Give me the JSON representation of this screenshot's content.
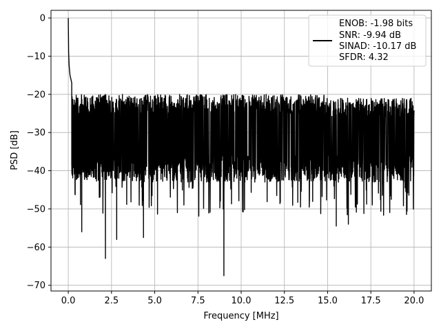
{
  "chart_data": {
    "type": "line",
    "title": "",
    "xlabel": "Frequency [MHz]",
    "ylabel": "PSD [dB]",
    "xlim": [
      -1.0,
      21.0
    ],
    "ylim": [
      -71.5,
      2.0
    ],
    "xticks": [
      0.0,
      2.5,
      5.0,
      7.5,
      10.0,
      12.5,
      15.0,
      17.5,
      20.0
    ],
    "xtick_labels": [
      "0.0",
      "2.5",
      "5.0",
      "7.5",
      "10.0",
      "12.5",
      "15.0",
      "17.5",
      "20.0"
    ],
    "yticks": [
      0,
      -10,
      -20,
      -30,
      -40,
      -50,
      -60,
      -70
    ],
    "ytick_labels": [
      "0",
      "−10",
      "−20",
      "−30",
      "−40",
      "−50",
      "−60",
      "−70"
    ],
    "grid": true,
    "legend_position": "top-right",
    "series": [
      {
        "name": "ENOB: -1.98 bits\nSNR: -9.94 dB\nSINAD: -10.17 dB\nSFDR: 4.32",
        "color": "#000000",
        "x_range": [
          0.0,
          20.0
        ],
        "peak_points": [
          {
            "x": 0.0,
            "y": 0.0
          },
          {
            "x": 0.02,
            "y": -9.0
          },
          {
            "x": 0.05,
            "y": -12.5
          },
          {
            "x": 0.1,
            "y": -15.0
          },
          {
            "x": 0.2,
            "y": -17.0
          },
          {
            "x": 0.78,
            "y": -56.0
          },
          {
            "x": 2.15,
            "y": -63.0
          },
          {
            "x": 2.8,
            "y": -58.0
          },
          {
            "x": 4.35,
            "y": -57.5
          },
          {
            "x": 9.0,
            "y": -67.5
          },
          {
            "x": 15.5,
            "y": -54.5
          },
          {
            "x": 16.2,
            "y": -54.0
          }
        ],
        "noise_floor_mean": -30.0,
        "noise_band_upper": -22.0,
        "noise_band_lower": -38.0
      }
    ],
    "legend_lines": [
      "ENOB: -1.98 bits",
      "SNR: -9.94 dB",
      "SINAD: -10.17 dB",
      "SFDR: 4.32"
    ]
  }
}
